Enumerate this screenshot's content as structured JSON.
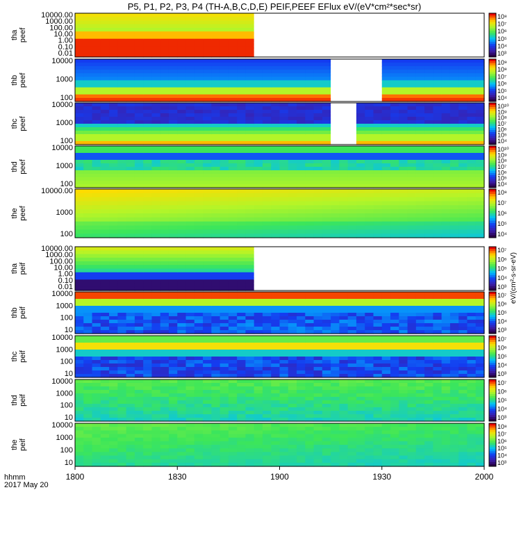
{
  "title": "P5, P1, P2, P3, P4 (TH-A,B,C,D,E) PEIF,PEEF EFlux eV/(eV*cm²*sec*sr)",
  "chart_data": {
    "type": "heatmap",
    "title": "P5, P1, P2, P3, P4 (TH-A,B,C,D,E) PEIF,PEEF EFlux eV/(eV*cm²*sec*sr)",
    "x_axis": {
      "tick_labels": [
        "1800",
        "1830",
        "1900",
        "1930",
        "2000"
      ],
      "corner_label": [
        "hhmm",
        "2017 May 20"
      ]
    },
    "colorbar_units": "eV/(cm²-s-sr-eV)",
    "panels": [
      {
        "probe": "tha",
        "product": "peef",
        "ylabel": [
          "tha",
          "peef"
        ],
        "yticks": [
          "10000.00",
          "1000.00",
          "100.00",
          "10.00",
          "1.00",
          "0.10",
          "0.01"
        ],
        "colorbar_ticks": [
          "10⁸",
          "10⁷",
          "10⁶",
          "10⁵",
          "10⁴",
          "10³"
        ],
        "data_coverage": "1800-1853",
        "log_y": true
      },
      {
        "probe": "thb",
        "product": "peef",
        "ylabel": [
          "thb",
          "peef"
        ],
        "yticks": [
          "10000",
          "1000",
          "100"
        ],
        "colorbar_ticks": [
          "10⁹",
          "10⁸",
          "10⁷",
          "10⁶",
          "10⁵",
          "10⁴"
        ],
        "data_gap": "1914-1932",
        "log_y": true
      },
      {
        "probe": "thc",
        "product": "peef",
        "ylabel": [
          "thc",
          "peef"
        ],
        "yticks": [
          "10000",
          "1000",
          "100"
        ],
        "colorbar_ticks": [
          "10¹⁰",
          "10⁹",
          "10⁸",
          "10⁷",
          "10⁶",
          "10⁵",
          "10⁴"
        ],
        "data_gap": "1913-1922",
        "log_y": true
      },
      {
        "probe": "thd",
        "product": "peef",
        "ylabel": [
          "thd",
          "peef"
        ],
        "yticks": [
          "10000",
          "1000",
          "100"
        ],
        "colorbar_ticks": [
          "10¹⁰",
          "10⁹",
          "10⁸",
          "10⁷",
          "10⁶",
          "10⁵",
          "10⁴"
        ],
        "log_y": true
      },
      {
        "probe": "the",
        "product": "peef",
        "ylabel": [
          "the",
          "peef"
        ],
        "yticks": [
          "10000.00",
          "1000",
          "100"
        ],
        "colorbar_ticks": [
          "10⁸",
          "10⁷",
          "10⁶",
          "10⁵",
          "10⁴"
        ],
        "log_y": true
      },
      {
        "probe": "tha",
        "product": "peif",
        "ylabel": [
          "tha",
          "peif"
        ],
        "yticks": [
          "10000.00",
          "1000.00",
          "100.00",
          "10.00",
          "1.00",
          "0.10",
          "0.01"
        ],
        "colorbar_ticks": [
          "10⁷",
          "10⁶",
          "10⁵",
          "10⁴",
          "10³"
        ],
        "data_coverage": "1800-1853",
        "log_y": true
      },
      {
        "probe": "thb",
        "product": "peif",
        "ylabel": [
          "thb",
          "peif"
        ],
        "yticks": [
          "10000",
          "1000",
          "100",
          "10"
        ],
        "colorbar_ticks": [
          "10⁷",
          "10⁶",
          "10⁵",
          "10⁴",
          "10³"
        ],
        "log_y": true
      },
      {
        "probe": "thc",
        "product": "peif",
        "ylabel": [
          "thc",
          "peif"
        ],
        "yticks": [
          "10000",
          "1000",
          "100",
          "10"
        ],
        "colorbar_ticks": [
          "10⁷",
          "10⁶",
          "10⁵",
          "10⁴",
          "10³"
        ],
        "log_y": true
      },
      {
        "probe": "thd",
        "product": "peif",
        "ylabel": [
          "thd",
          "peif"
        ],
        "yticks": [
          "10000",
          "1000",
          "100",
          "10"
        ],
        "colorbar_ticks": [
          "10⁷",
          "10⁶",
          "10⁵",
          "10⁴",
          "10³"
        ],
        "log_y": true
      },
      {
        "probe": "the",
        "product": "peif",
        "ylabel": [
          "the",
          "peif"
        ],
        "yticks": [
          "10000",
          "1000",
          "100",
          "10"
        ],
        "colorbar_ticks": [
          "10⁸",
          "10⁷",
          "10⁶",
          "10⁵",
          "10⁴",
          "10³"
        ],
        "log_y": true
      }
    ],
    "grid": false,
    "legend": "colorbars right of each panel"
  }
}
